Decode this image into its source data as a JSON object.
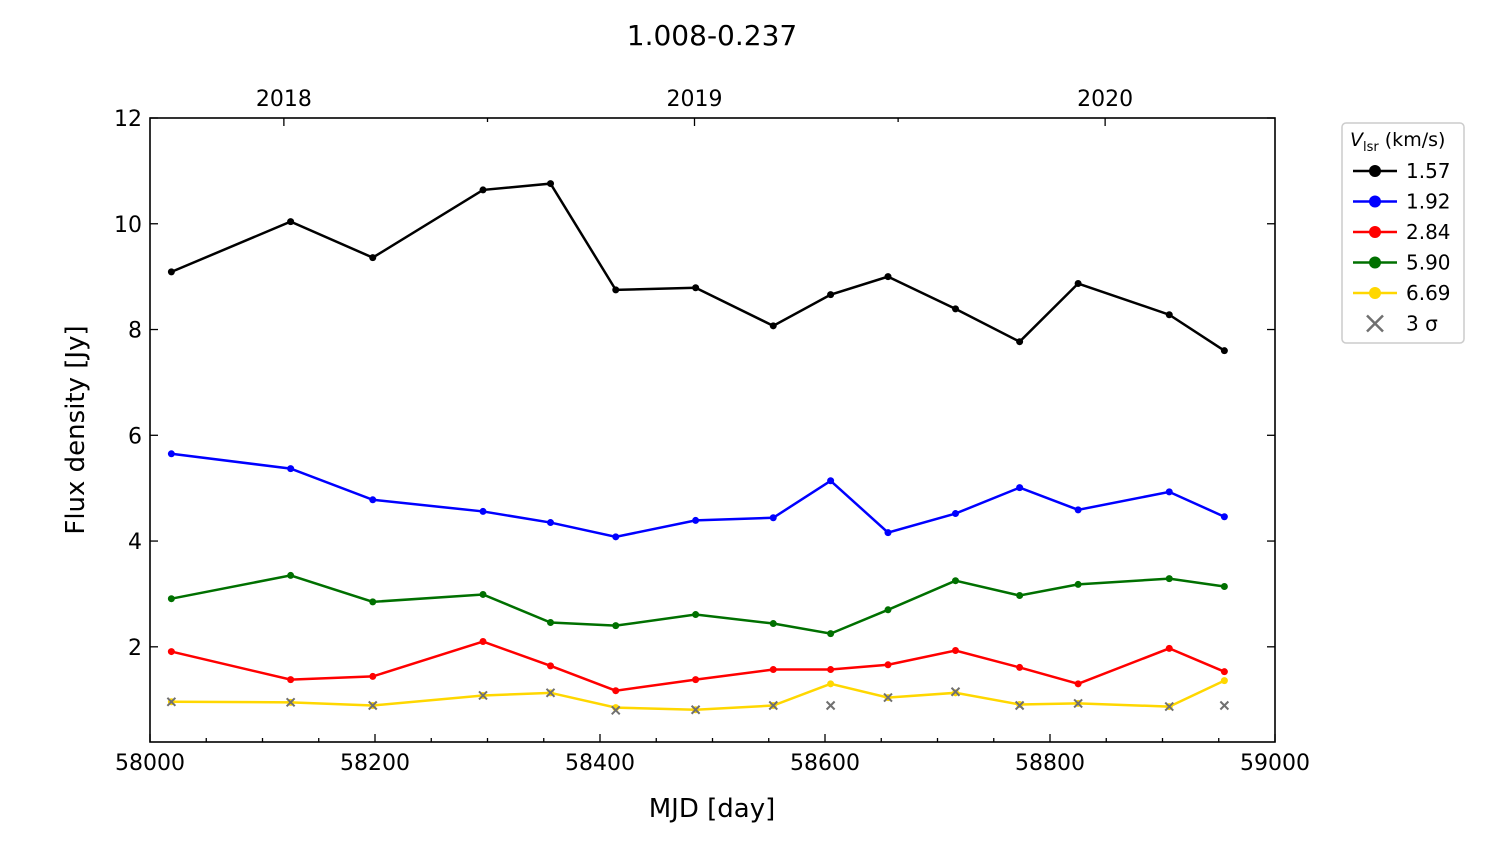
{
  "chart_data": {
    "type": "line",
    "title": "1.008-0.237",
    "xlabel": "MJD [day]",
    "ylabel": "Flux density [Jy]",
    "xlim": [
      58000,
      59000
    ],
    "ylim": [
      0.2,
      12
    ],
    "xticks": [
      58000,
      58200,
      58400,
      58600,
      58800,
      59000
    ],
    "yticks": [
      2,
      4,
      6,
      8,
      10,
      12
    ],
    "top_axis": {
      "ticks": [
        {
          "label": "2018",
          "mjd": 58119
        },
        {
          "label": "2019",
          "mjd": 58484
        },
        {
          "label": "2020",
          "mjd": 58849
        }
      ],
      "minor_mjd": [
        58300,
        58665
      ]
    },
    "grid": false,
    "legend": {
      "title_main": "V",
      "title_sub": "lsr",
      "title_unit": " (km/s)",
      "placement": "outside-right",
      "sigma_label": "3 σ"
    },
    "x": [
      58019,
      58125,
      58198,
      58296,
      58356,
      58414,
      58485,
      58554,
      58605,
      58656,
      58716,
      58773,
      58825,
      58906,
      58955
    ],
    "series": [
      {
        "name": "1.57",
        "color": "#000000",
        "values": [
          9.09,
          10.04,
          9.36,
          10.64,
          10.76,
          8.75,
          8.79,
          8.07,
          8.66,
          9.0,
          8.39,
          7.77,
          8.87,
          8.28,
          7.6
        ]
      },
      {
        "name": "1.92",
        "color": "#0000ff",
        "values": [
          5.65,
          5.37,
          4.78,
          4.56,
          4.35,
          4.08,
          4.39,
          4.44,
          5.14,
          4.16,
          4.52,
          5.01,
          4.59,
          4.93,
          4.46
        ]
      },
      {
        "name": "2.84",
        "color": "#ff0000",
        "values": [
          1.91,
          1.38,
          1.44,
          2.1,
          1.64,
          1.17,
          1.38,
          1.57,
          1.57,
          1.66,
          1.93,
          1.61,
          1.3,
          1.97,
          1.53
        ]
      },
      {
        "name": "5.90",
        "color": "#007000",
        "values": [
          2.91,
          3.35,
          2.85,
          2.99,
          2.46,
          2.4,
          2.61,
          2.44,
          2.25,
          2.7,
          3.25,
          2.97,
          3.18,
          3.29,
          3.14
        ]
      },
      {
        "name": "6.69",
        "color": "#ffd700",
        "values": [
          0.96,
          0.95,
          0.89,
          1.08,
          1.13,
          0.85,
          0.81,
          0.89,
          1.3,
          1.04,
          1.13,
          0.91,
          0.93,
          0.87,
          1.36
        ]
      }
    ],
    "sigma3": {
      "name": "3 σ",
      "color": "#707070",
      "values": [
        0.96,
        0.95,
        0.89,
        1.08,
        1.13,
        0.8,
        0.81,
        0.89,
        0.89,
        1.04,
        1.15,
        0.89,
        0.93,
        0.87,
        0.89
      ]
    }
  }
}
